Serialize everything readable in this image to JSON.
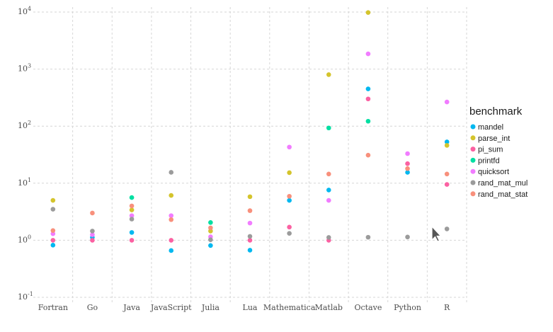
{
  "chart_data": {
    "type": "scatter",
    "title": "",
    "xlabel": "",
    "ylabel": "",
    "y_scale": "log",
    "ylim": [
      0.1,
      10000
    ],
    "y_ticks": [
      {
        "value": 0.1,
        "base": "10",
        "exp": "-1"
      },
      {
        "value": 1,
        "base": "10",
        "exp": "0"
      },
      {
        "value": 10,
        "base": "10",
        "exp": "1"
      },
      {
        "value": 100,
        "base": "10",
        "exp": "2"
      },
      {
        "value": 1000,
        "base": "10",
        "exp": "3"
      },
      {
        "value": 10000,
        "base": "10",
        "exp": "4"
      }
    ],
    "categories": [
      "Fortran",
      "Go",
      "Java",
      "JavaScript",
      "Julia",
      "Lua",
      "Mathematica",
      "Matlab",
      "Octave",
      "Python",
      "R"
    ],
    "grid": true,
    "legend": {
      "title": "benchmark",
      "position": "right"
    },
    "series": [
      {
        "name": "mandel",
        "color": "#00b8f0",
        "values": [
          0.82,
          1.12,
          1.37,
          0.66,
          0.81,
          0.67,
          5.0,
          7.6,
          450,
          15.5,
          53
        ]
      },
      {
        "name": "parse_int",
        "color": "#d4c42c",
        "values": [
          5.0,
          null,
          3.4,
          6.1,
          1.45,
          5.8,
          15.3,
          800,
          9800,
          null,
          46
        ]
      },
      {
        "name": "pi_sum",
        "color": "#fb61a2",
        "values": [
          1.0,
          1.0,
          1.0,
          1.0,
          null,
          1.0,
          1.7,
          1.0,
          300,
          22,
          9.5
        ]
      },
      {
        "name": "printfd",
        "color": "#00dfa2",
        "values": [
          null,
          null,
          5.6,
          null,
          2.05,
          null,
          null,
          93,
          122,
          null,
          null
        ]
      },
      {
        "name": "quicksort",
        "color": "#f17cff",
        "values": [
          1.3,
          1.25,
          2.7,
          2.7,
          1.15,
          2.0,
          43,
          5.0,
          1850,
          33,
          265
        ]
      },
      {
        "name": "rand_mat_mul",
        "color": "#9b9b9b",
        "values": [
          3.5,
          1.45,
          2.35,
          15.5,
          1.02,
          1.17,
          1.32,
          1.12,
          1.13,
          1.14,
          1.58
        ]
      },
      {
        "name": "rand_mat_stat",
        "color": "#f8907c",
        "values": [
          1.48,
          3.0,
          4.0,
          2.3,
          1.65,
          3.3,
          5.9,
          14.5,
          31,
          18,
          14.5
        ]
      }
    ]
  },
  "cursor": {
    "icon": "mouse-pointer-icon"
  }
}
